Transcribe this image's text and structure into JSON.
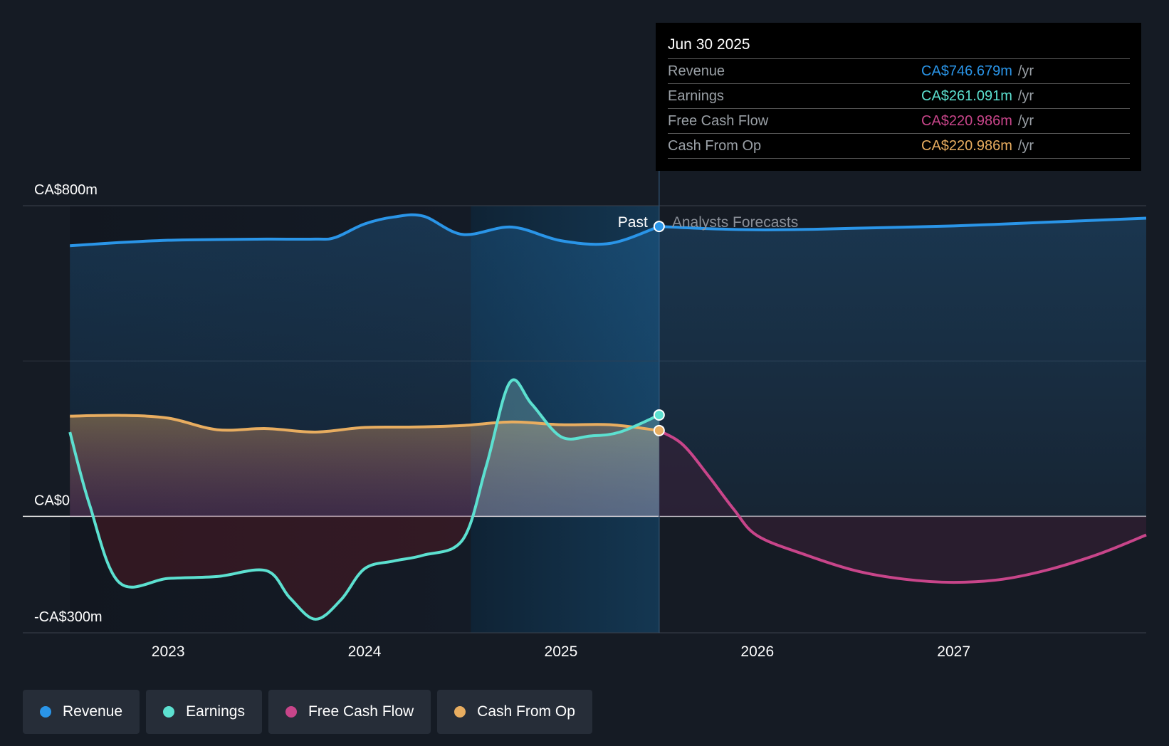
{
  "chart_data": {
    "type": "area",
    "title": "",
    "xlabel": "",
    "ylabel": "",
    "x_ticks": [
      "2023",
      "2024",
      "2025",
      "2026",
      "2027"
    ],
    "y_tick_labels": {
      "top": "CA$800m",
      "zero": "CA$0",
      "bottom": "-CA$300m"
    },
    "ylim": [
      -300,
      800
    ],
    "xlim": [
      2022.26,
      2027.98
    ],
    "divider_x": 2025.5,
    "past_label": "Past",
    "forecast_label": "Analysts Forecasts",
    "series": [
      {
        "name": "Revenue",
        "color": "#2a95e8",
        "points": [
          [
            2022.5,
            697
          ],
          [
            2022.75,
            705
          ],
          [
            2023.0,
            711
          ],
          [
            2023.25,
            713
          ],
          [
            2023.5,
            714
          ],
          [
            2023.75,
            714
          ],
          [
            2023.85,
            718
          ],
          [
            2024.0,
            753
          ],
          [
            2024.15,
            771
          ],
          [
            2024.3,
            773
          ],
          [
            2024.5,
            726
          ],
          [
            2024.75,
            745
          ],
          [
            2025.0,
            710
          ],
          [
            2025.25,
            703
          ],
          [
            2025.5,
            746.679
          ]
        ],
        "forecast": [
          [
            2025.5,
            746.679
          ],
          [
            2025.75,
            741
          ],
          [
            2026.0,
            738
          ],
          [
            2026.25,
            739
          ],
          [
            2026.5,
            742
          ],
          [
            2027.0,
            748
          ],
          [
            2027.5,
            758
          ],
          [
            2027.98,
            768
          ]
        ]
      },
      {
        "name": "Earnings",
        "color": "#5ce0d0",
        "points": [
          [
            2022.5,
            217
          ],
          [
            2022.6,
            30
          ],
          [
            2022.75,
            -170
          ],
          [
            2023.0,
            -160
          ],
          [
            2023.25,
            -155
          ],
          [
            2023.5,
            -140
          ],
          [
            2023.62,
            -210
          ],
          [
            2023.75,
            -265
          ],
          [
            2023.88,
            -215
          ],
          [
            2024.0,
            -135
          ],
          [
            2024.15,
            -115
          ],
          [
            2024.3,
            -100
          ],
          [
            2024.5,
            -60
          ],
          [
            2024.62,
            130
          ],
          [
            2024.74,
            345
          ],
          [
            2024.85,
            290
          ],
          [
            2025.0,
            205
          ],
          [
            2025.15,
            207
          ],
          [
            2025.3,
            217
          ],
          [
            2025.5,
            261.091
          ]
        ]
      },
      {
        "name": "Free Cash Flow",
        "color": "#c8458a",
        "points": [],
        "forecast": [
          [
            2025.5,
            220.986
          ],
          [
            2025.62,
            185
          ],
          [
            2025.75,
            105
          ],
          [
            2025.88,
            18
          ],
          [
            2026.0,
            -50
          ],
          [
            2026.25,
            -100
          ],
          [
            2026.5,
            -140
          ],
          [
            2026.75,
            -162
          ],
          [
            2027.0,
            -170
          ],
          [
            2027.25,
            -162
          ],
          [
            2027.5,
            -135
          ],
          [
            2027.75,
            -95
          ],
          [
            2027.98,
            -48
          ]
        ]
      },
      {
        "name": "Cash From Op",
        "color": "#e8ad60",
        "points": [
          [
            2022.5,
            258
          ],
          [
            2022.75,
            260
          ],
          [
            2023.0,
            253
          ],
          [
            2023.25,
            223
          ],
          [
            2023.5,
            226
          ],
          [
            2023.75,
            217
          ],
          [
            2024.0,
            229
          ],
          [
            2024.25,
            230
          ],
          [
            2024.5,
            234
          ],
          [
            2024.75,
            243
          ],
          [
            2025.0,
            236
          ],
          [
            2025.25,
            236
          ],
          [
            2025.5,
            220.986
          ]
        ]
      }
    ]
  },
  "tooltip": {
    "date": "Jun 30 2025",
    "rows": [
      {
        "label": "Revenue",
        "value": "CA$746.679m",
        "unit": "/yr",
        "color": "#2a95e8"
      },
      {
        "label": "Earnings",
        "value": "CA$261.091m",
        "unit": "/yr",
        "color": "#5ce0d0"
      },
      {
        "label": "Free Cash Flow",
        "value": "CA$220.986m",
        "unit": "/yr",
        "color": "#c8458a"
      },
      {
        "label": "Cash From Op",
        "value": "CA$220.986m",
        "unit": "/yr",
        "color": "#e8ad60"
      }
    ]
  },
  "legend": [
    {
      "label": "Revenue",
      "color": "#2a95e8"
    },
    {
      "label": "Earnings",
      "color": "#5ce0d0"
    },
    {
      "label": "Free Cash Flow",
      "color": "#c8458a"
    },
    {
      "label": "Cash From Op",
      "color": "#e8ad60"
    }
  ]
}
